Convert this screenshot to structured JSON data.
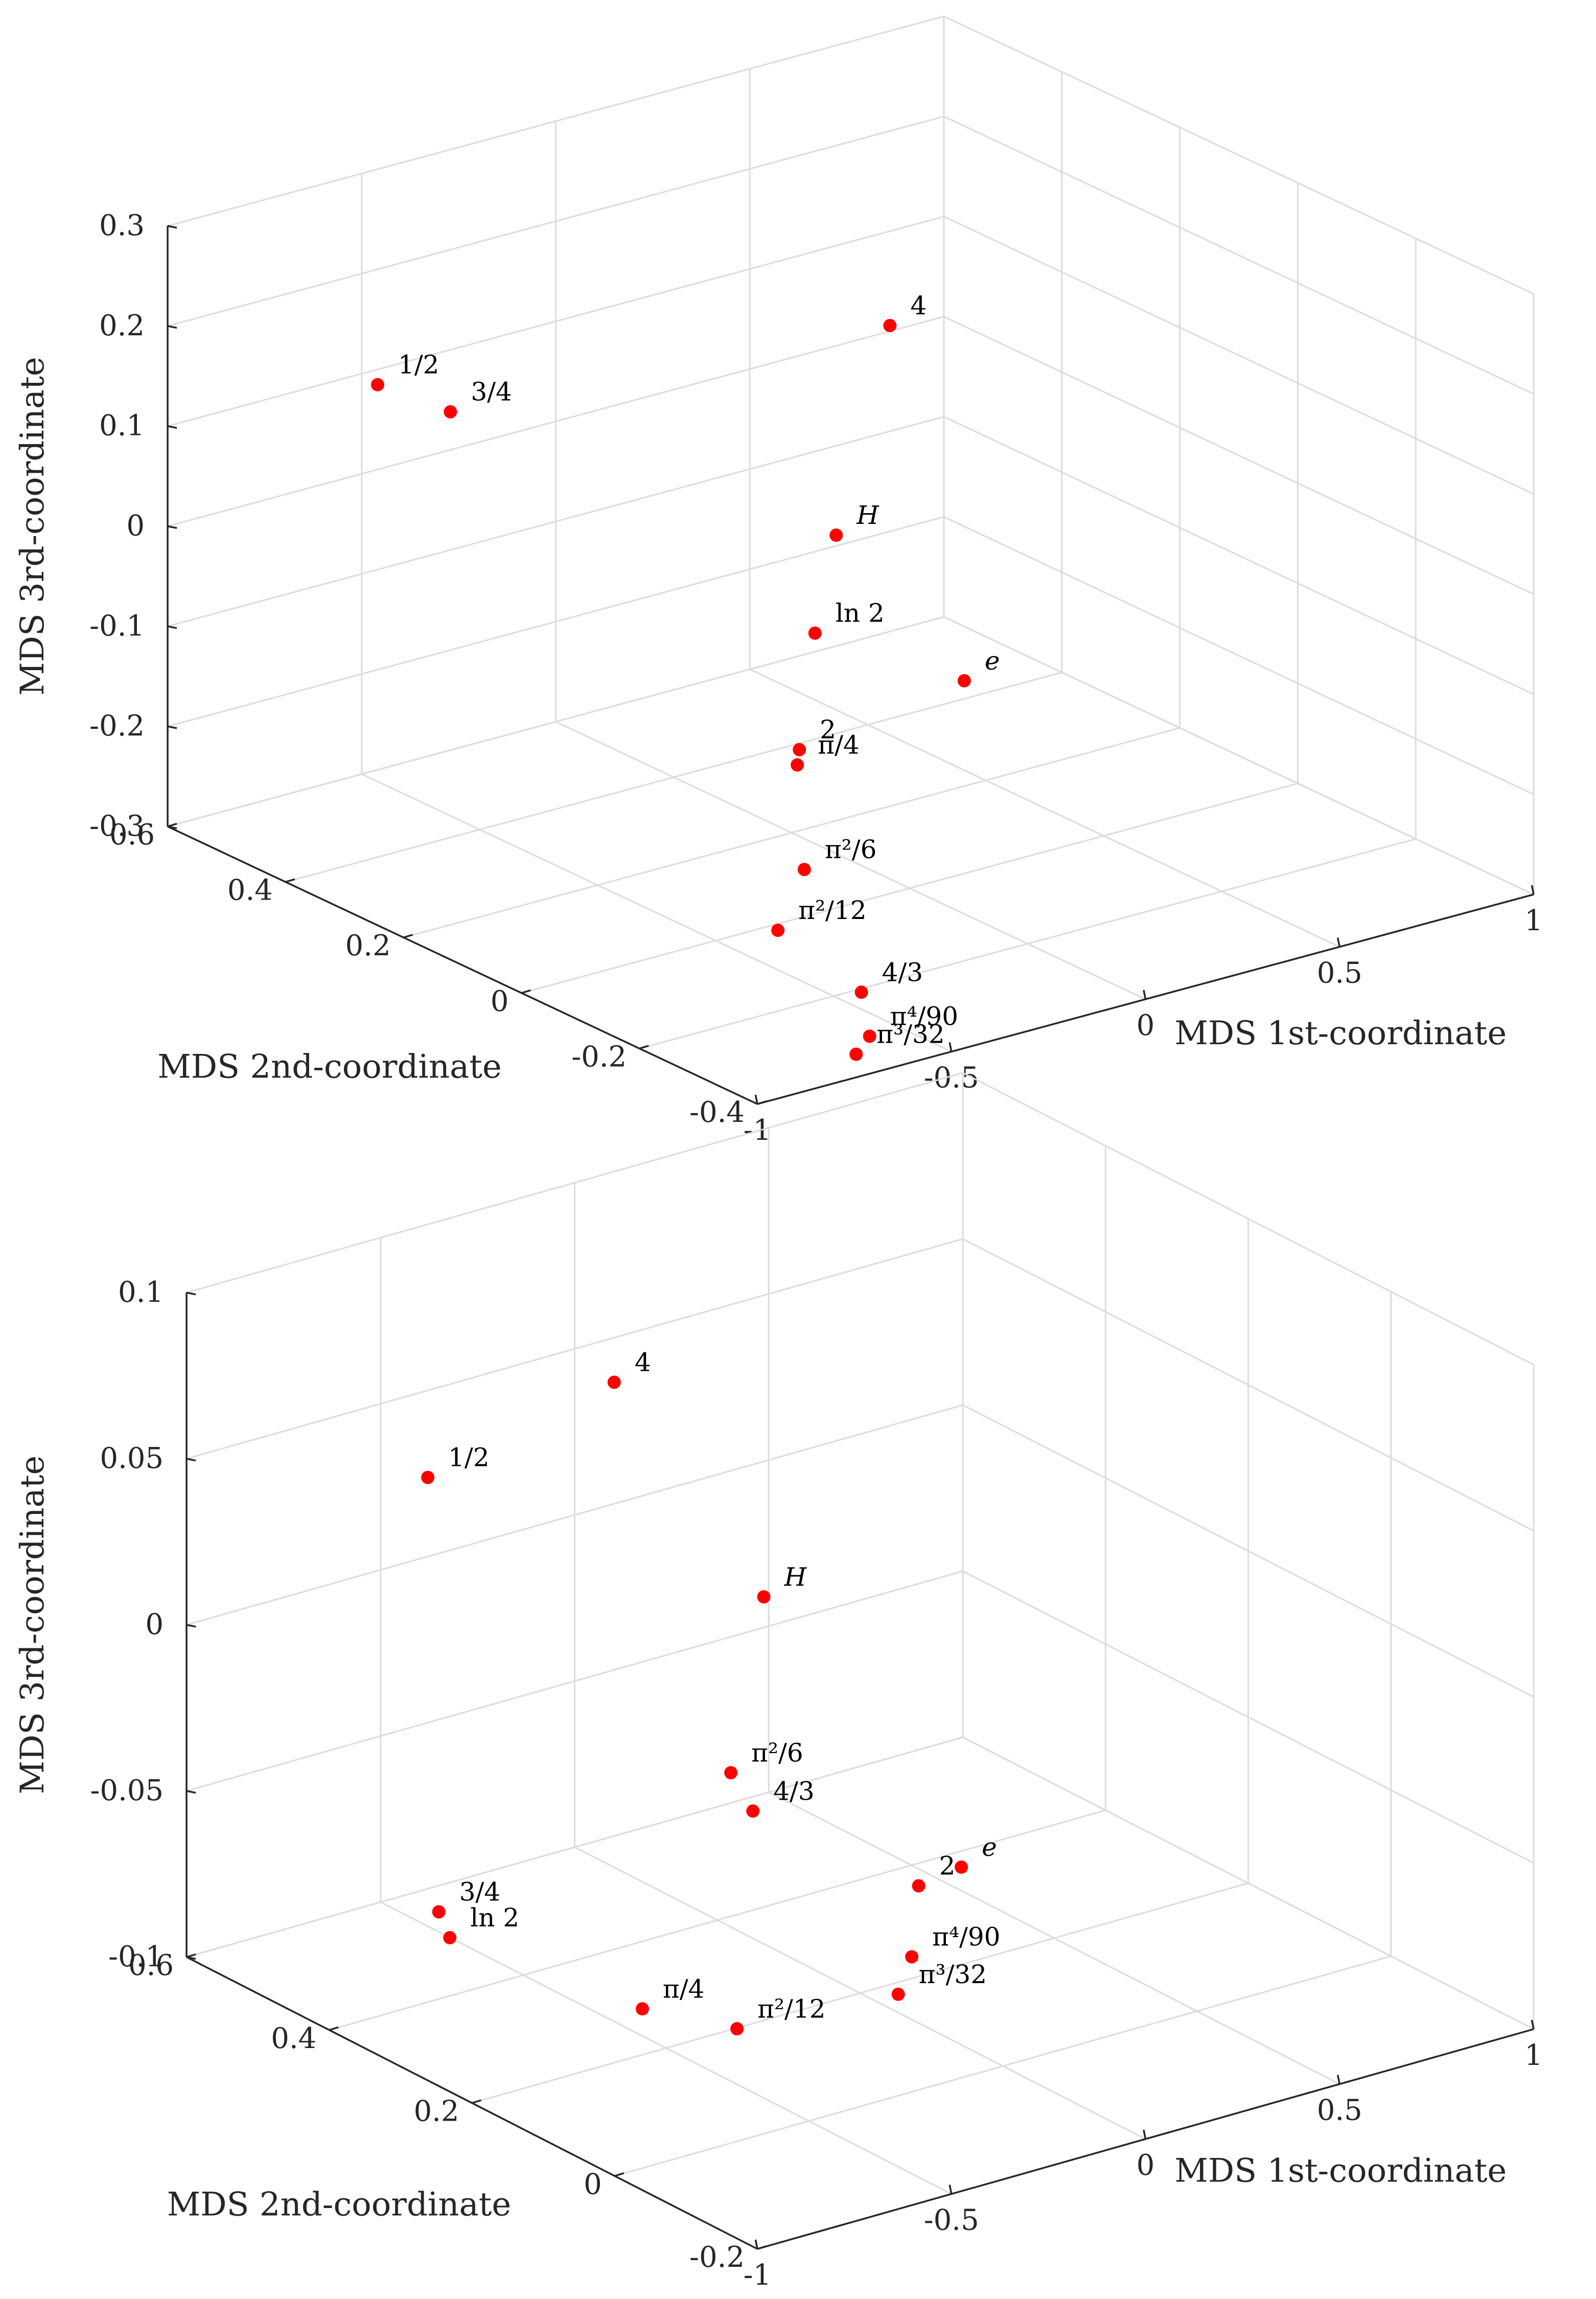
{
  "colors": {
    "marker": "#ff0000",
    "grid": "#dcdcdc",
    "axis": "#262626"
  },
  "chart_data": [
    {
      "type": "scatter",
      "dimensions": 3,
      "xlabel": "MDS 1st-coordinate",
      "ylabel": "MDS 2nd-coordinate",
      "zlabel": "MDS 3rd-coordinate",
      "xlim": [
        -1,
        1
      ],
      "ylim": [
        -0.4,
        0.6
      ],
      "zlim": [
        -0.3,
        0.3
      ],
      "xticks": [
        "-1",
        "-0.5",
        "0",
        "0.5",
        "1"
      ],
      "yticks": [
        "-0.4",
        "-0.2",
        "0",
        "0.2",
        "0.4",
        "0.6"
      ],
      "zticks": [
        "-0.3",
        "-0.2",
        "-0.1",
        "0",
        "0.1",
        "0.2",
        "0.3"
      ],
      "grid": true,
      "points": [
        {
          "label": "1/2",
          "x": -0.93,
          "y": 0.29,
          "z": 0.22
        },
        {
          "label": "3/4",
          "x": -0.94,
          "y": 0.16,
          "z": 0.23
        },
        {
          "label": "ln 2",
          "x": -0.73,
          "y": -0.32,
          "z": 0.12
        },
        {
          "label": "π/4",
          "x": -0.73,
          "y": -0.29,
          "z": -0.02
        },
        {
          "label": "π²/12",
          "x": -0.78,
          "y": -0.29,
          "z": -0.18
        },
        {
          "label": "π³/32",
          "x": -0.7,
          "y": -0.37,
          "z": -0.29
        },
        {
          "label": "π⁴/90",
          "x": -0.65,
          "y": -0.36,
          "z": -0.28
        },
        {
          "label": "4/3",
          "x": -0.58,
          "y": -0.3,
          "z": -0.26
        },
        {
          "label": "π²/6",
          "x": -0.56,
          "y": -0.19,
          "z": -0.17
        },
        {
          "label": "2",
          "x": -0.36,
          "y": -0.05,
          "z": -0.11
        },
        {
          "label": "e",
          "x": 0.08,
          "y": -0.04,
          "z": -0.09
        },
        {
          "label": "H",
          "x": -0.25,
          "y": -0.04,
          "z": 0.09
        },
        {
          "label": "4",
          "x": 0.01,
          "y": 0.04,
          "z": 0.25
        }
      ]
    },
    {
      "type": "scatter",
      "dimensions": 3,
      "xlabel": "MDS 1st-coordinate",
      "ylabel": "MDS 2nd-coordinate",
      "zlabel": "MDS 3rd-coordinate",
      "xlim": [
        -1,
        1
      ],
      "ylim": [
        -0.2,
        0.6
      ],
      "zlim": [
        -0.1,
        0.1
      ],
      "xticks": [
        "-1",
        "-0.5",
        "0",
        "0.5",
        "1"
      ],
      "yticks": [
        "-0.2",
        "0",
        "0.2",
        "0.4",
        "0.6"
      ],
      "zticks": [
        "-0.1",
        "-0.05",
        "0",
        "0.05",
        "0.1"
      ],
      "grid": true,
      "points": [
        {
          "label": "1/2",
          "x": -0.93,
          "y": 0.3,
          "z": 0.075
        },
        {
          "label": "3/4",
          "x": -0.92,
          "y": 0.29,
          "z": -0.055
        },
        {
          "label": "ln 2",
          "x": -0.91,
          "y": 0.28,
          "z": -0.062
        },
        {
          "label": "π/4",
          "x": -0.8,
          "y": 0.07,
          "z": -0.064
        },
        {
          "label": "π²/12",
          "x": -0.74,
          "y": -0.03,
          "z": -0.061
        },
        {
          "label": "π³/32",
          "x": -0.49,
          "y": -0.12,
          "z": -0.049
        },
        {
          "label": "π⁴/90",
          "x": -0.4,
          "y": -0.09,
          "z": -0.044
        },
        {
          "label": "π²/6",
          "x": -0.48,
          "y": 0.12,
          "z": -0.009
        },
        {
          "label": "4/3",
          "x": -0.46,
          "y": 0.1,
          "z": -0.019
        },
        {
          "label": "2",
          "x": -0.18,
          "y": 0.02,
          "z": -0.042
        },
        {
          "label": "e",
          "x": -0.07,
          "y": 0.02,
          "z": -0.04
        },
        {
          "label": "H",
          "x": -0.34,
          "y": 0.15,
          "z": 0.036
        },
        {
          "label": "4",
          "x": -0.56,
          "y": 0.24,
          "z": 0.098
        }
      ]
    }
  ]
}
